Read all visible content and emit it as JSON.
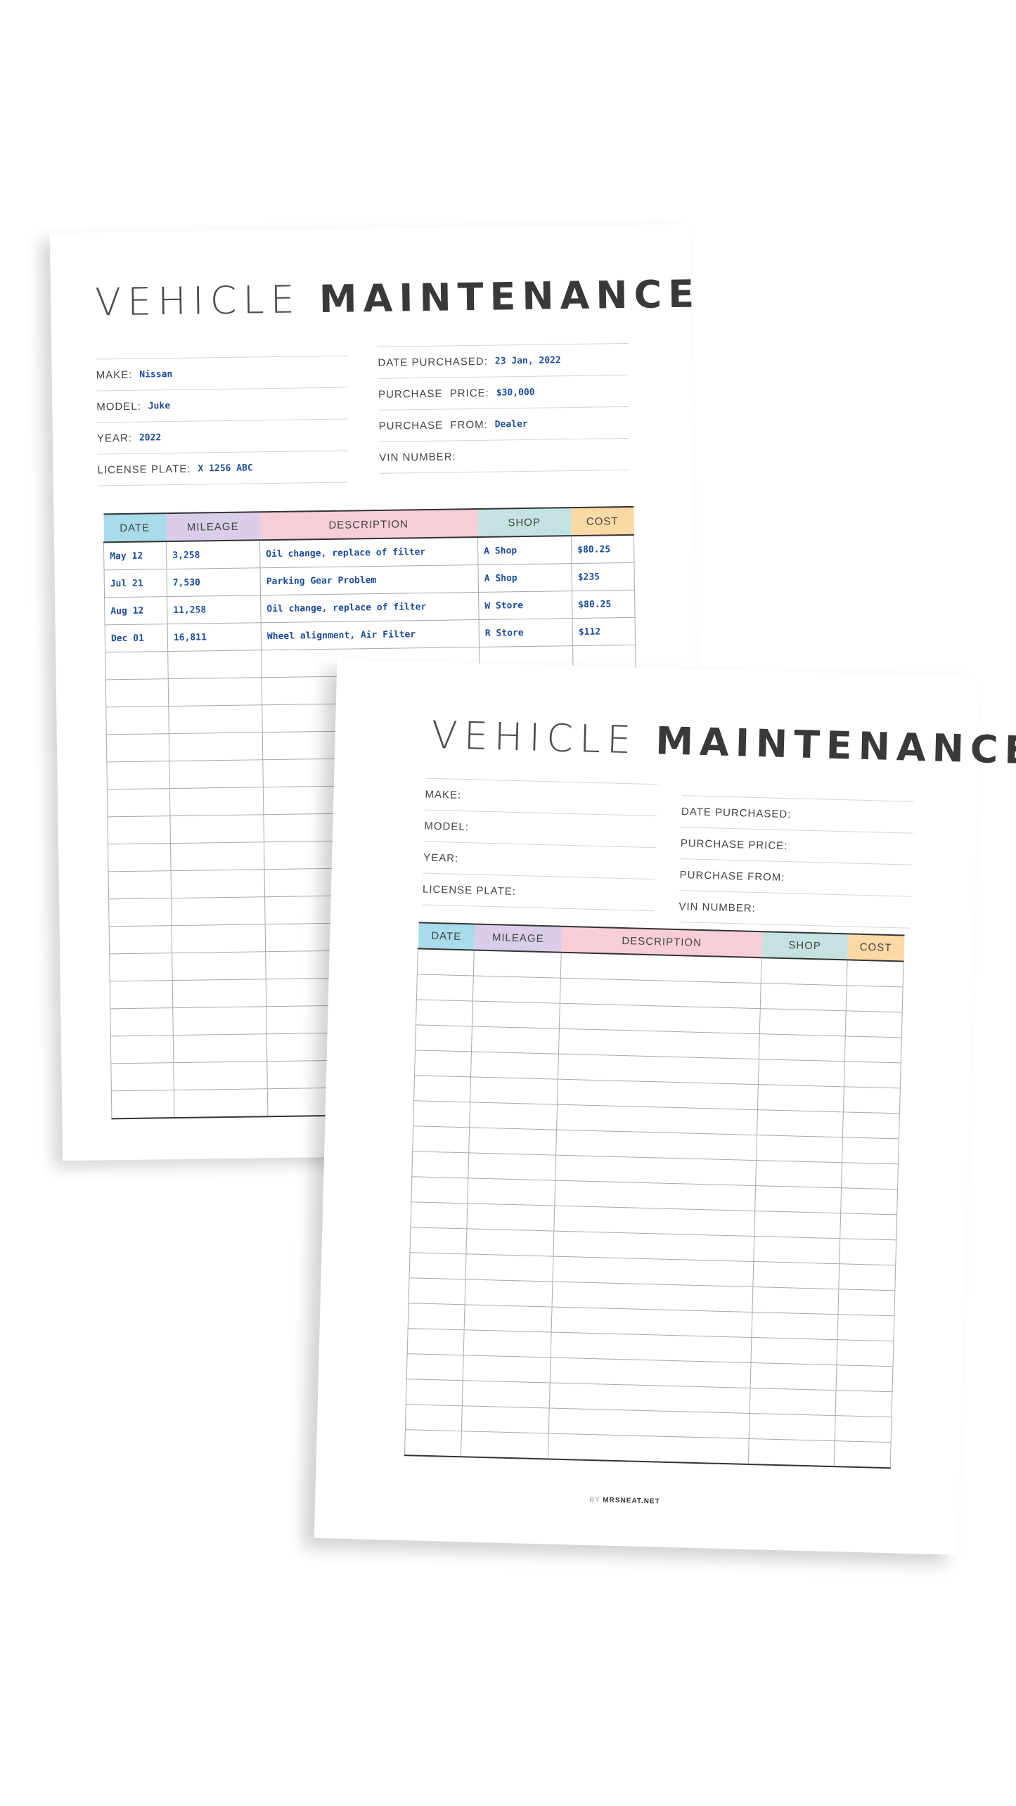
{
  "sheets": [
    {
      "title_light": "VEHICLE",
      "title_bold": "MAINTENANCE",
      "left_fields": [
        {
          "label": "MAKE:",
          "value": "Nissan"
        },
        {
          "label": "MODEL:",
          "value": "Juke"
        },
        {
          "label": "YEAR:",
          "value": "2022"
        },
        {
          "label": "LICENSE PLATE:",
          "value": "X 1256 ABC"
        }
      ],
      "right_fields": [
        {
          "label": "DATE PURCHASED:",
          "value": "23 Jan, 2022"
        },
        {
          "label": "PURCHASE  PRICE:",
          "value": "$30,000"
        },
        {
          "label": "PURCHASE  FROM:",
          "value": "Dealer"
        },
        {
          "label": "VIN NUMBER:",
          "value": ""
        }
      ],
      "columns": [
        "DATE",
        "MILEAGE",
        "DESCRIPTION",
        "SHOP",
        "COST"
      ],
      "rows": [
        [
          "May 12",
          "3,258",
          "Oil change, replace of filter",
          "A Shop",
          "$80.25"
        ],
        [
          "Jul 21",
          "7,530",
          "Parking Gear Problem",
          "A Shop",
          "$235"
        ],
        [
          "Aug 12",
          "11,258",
          "Oil change, replace of filter",
          "W Store",
          "$80.25"
        ],
        [
          "Dec 01",
          "16,811",
          "Wheel alignment, Air Filter",
          "R Store",
          "$112"
        ]
      ]
    },
    {
      "title_light": "VEHICLE",
      "title_bold": "MAINTENANCE",
      "left_fields": [
        {
          "label": "MAKE:",
          "value": ""
        },
        {
          "label": "MODEL:",
          "value": ""
        },
        {
          "label": "YEAR:",
          "value": ""
        },
        {
          "label": "LICENSE PLATE:",
          "value": ""
        }
      ],
      "right_fields": [
        {
          "label": "DATE PURCHASED:",
          "value": ""
        },
        {
          "label": "PURCHASE PRICE:",
          "value": ""
        },
        {
          "label": "PURCHASE FROM:",
          "value": ""
        },
        {
          "label": "VIN NUMBER:",
          "value": ""
        }
      ],
      "columns": [
        "DATE",
        "MILEAGE",
        "DESCRIPTION",
        "SHOP",
        "COST"
      ],
      "rows": [],
      "footer_by": "BY",
      "footer_brand": "MRSNEAT.NET"
    }
  ],
  "colors": {
    "date": "#a9dcea",
    "mileage": "#d9cde9",
    "description": "#f7cdd8",
    "shop": "#c4e3e0",
    "cost": "#fbd9a5",
    "handwriting": "#1c4c9c"
  }
}
